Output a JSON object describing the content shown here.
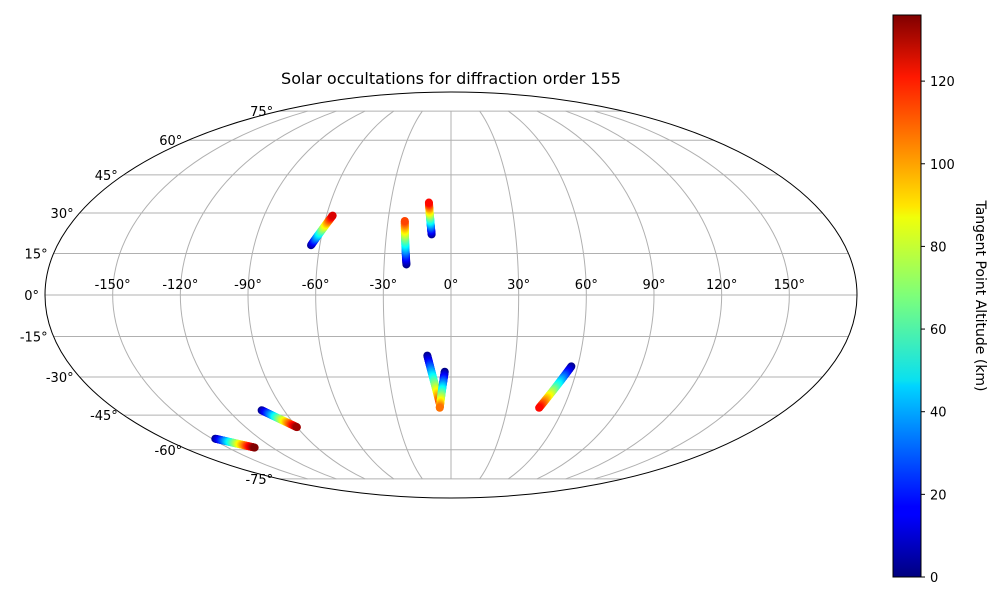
{
  "chart_data": {
    "type": "scatter",
    "projection": "mollweide",
    "title": "Solar occultations for diffraction order 155",
    "grid": true,
    "lon_ticks": [
      -150,
      -120,
      -90,
      -60,
      -30,
      0,
      30,
      60,
      90,
      120,
      150
    ],
    "lon_tick_labels": [
      "-150°",
      "-120°",
      "-90°",
      "-60°",
      "-30°",
      "0°",
      "30°",
      "60°",
      "90°",
      "120°",
      "150°"
    ],
    "lat_ticks": [
      75,
      60,
      45,
      30,
      15,
      0,
      -15,
      -30,
      -45,
      -60,
      -75
    ],
    "lat_tick_labels": [
      "75°",
      "60°",
      "45°",
      "30°",
      "15°",
      "0°",
      "-15°",
      "-30°",
      "-45°",
      "-60°",
      "-75°"
    ],
    "colorbar": {
      "label": "Tangent Point Altitude (km)",
      "colormap": "jet",
      "range": [
        0,
        136
      ],
      "ticks": [
        0,
        20,
        40,
        60,
        80,
        100,
        120
      ],
      "tick_labels": [
        "0",
        "20",
        "40",
        "60",
        "80",
        "100",
        "120"
      ]
    },
    "tracks": [
      {
        "lon_start": -64,
        "lat_start": 18,
        "alt_start": 2,
        "lon_end": -57,
        "lat_end": 29,
        "alt_end": 124
      },
      {
        "lon_start": -20,
        "lat_start": 11,
        "alt_start": 0,
        "lon_end": -22,
        "lat_end": 27,
        "alt_end": 110
      },
      {
        "lon_start": -9,
        "lat_start": 22,
        "alt_start": 2,
        "lon_end": -11,
        "lat_end": 34,
        "alt_end": 118
      },
      {
        "lon_start": -11,
        "lat_start": -22,
        "alt_start": 2,
        "lon_end": -6,
        "lat_end": -40,
        "alt_end": 110
      },
      {
        "lon_start": -3,
        "lat_start": -28,
        "alt_start": 0,
        "lon_end": -6,
        "lat_end": -42,
        "alt_end": 104
      },
      {
        "lon_start": 57,
        "lat_start": -26,
        "alt_start": 2,
        "lon_end": 47,
        "lat_end": -42,
        "alt_end": 118
      },
      {
        "lon_start": -102,
        "lat_start": -43,
        "alt_start": 2,
        "lon_end": -90,
        "lat_end": -50,
        "alt_end": 132
      },
      {
        "lon_start": -148,
        "lat_start": -55,
        "alt_start": 2,
        "lon_end": -132,
        "lat_end": -59,
        "alt_end": 136
      }
    ]
  }
}
